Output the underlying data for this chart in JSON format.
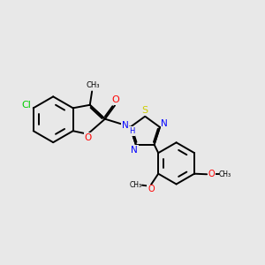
{
  "bg_color": "#e8e8e8",
  "bond_color": "#000000",
  "bond_width": 1.4,
  "figsize": [
    3.0,
    3.0
  ],
  "dpi": 100,
  "xlim": [
    0,
    10
  ],
  "ylim": [
    0,
    10
  ],
  "cl_color": "#00cc00",
  "o_color": "#ff0000",
  "n_color": "#0000ff",
  "s_color": "#cccc00",
  "text_fontsize": 7.5
}
